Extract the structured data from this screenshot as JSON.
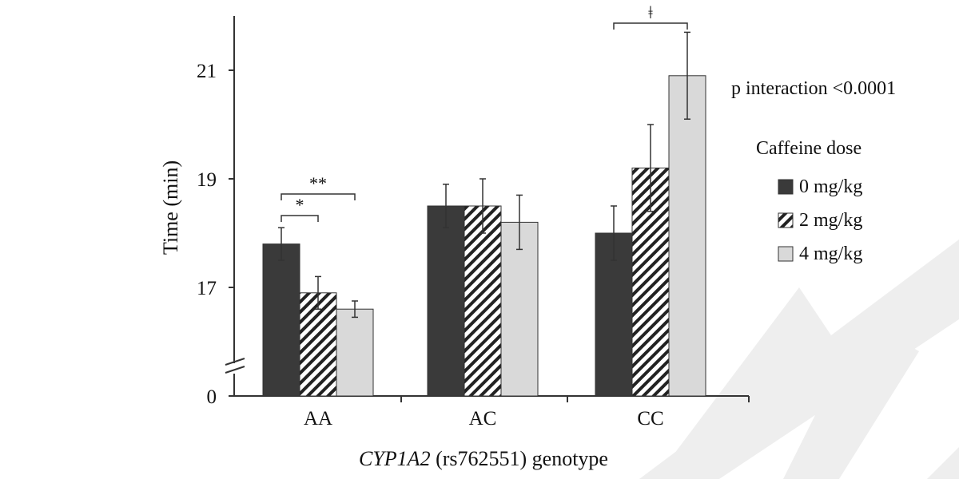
{
  "chart_data": {
    "type": "bar",
    "xlabel_gene": "CYP1A2",
    "xlabel_rest": " (rs762551) genotype",
    "ylabel": "Time (min)",
    "y_ticks": [
      "0",
      "17",
      "19",
      "21"
    ],
    "y_break": {
      "from": 0,
      "to": 16
    },
    "ylim": [
      16,
      22
    ],
    "categories": [
      "AA",
      "AC",
      "CC"
    ],
    "legend_title": "Caffeine dose",
    "legend_position": "right",
    "annotation_text": "p interaction <0.0001",
    "series": [
      {
        "name": "0 mg/kg",
        "pattern": "solid-dark",
        "color": "#3a3a3a",
        "values": [
          17.8,
          18.5,
          18.0
        ],
        "errors": [
          0.3,
          0.4,
          0.5
        ]
      },
      {
        "name": "2 mg/kg",
        "pattern": "diagonal-hatch",
        "color": "#222222",
        "values": [
          16.9,
          18.5,
          19.2
        ],
        "errors": [
          0.3,
          0.5,
          0.8
        ]
      },
      {
        "name": "4 mg/kg",
        "pattern": "solid-light",
        "color": "#d9d9d9",
        "values": [
          16.6,
          18.2,
          20.9
        ],
        "errors": [
          0.15,
          0.5,
          0.8
        ]
      }
    ],
    "significance": [
      {
        "category": "AA",
        "from_series": 0,
        "to_series": 1,
        "label": "*"
      },
      {
        "category": "AA",
        "from_series": 0,
        "to_series": 2,
        "label": "**"
      },
      {
        "category": "CC",
        "from_series": 0,
        "to_series": 2,
        "label": "ǂ"
      }
    ],
    "watermark_color": "#eeeeee"
  }
}
